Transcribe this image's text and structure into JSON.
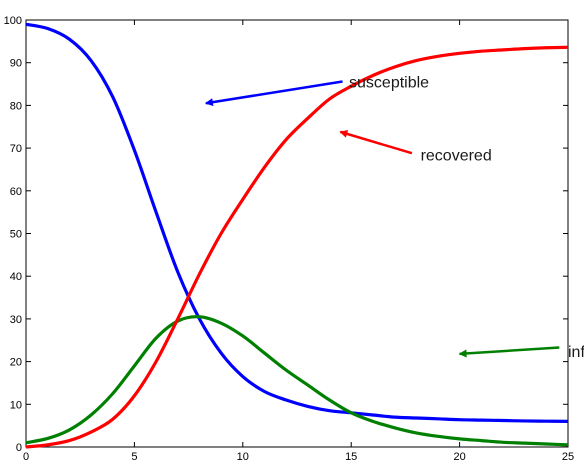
{
  "chart_data": {
    "type": "line",
    "xlim": [
      0,
      25
    ],
    "ylim": [
      0,
      100
    ],
    "xticks": [
      0,
      5,
      10,
      15,
      20,
      25
    ],
    "yticks": [
      0,
      10,
      20,
      30,
      40,
      50,
      60,
      70,
      80,
      90,
      100
    ],
    "grid": false,
    "series": [
      {
        "name": "susceptible",
        "color": "#0000ff",
        "x": [
          0,
          1,
          2,
          3,
          4,
          5,
          6,
          7,
          8,
          9,
          10,
          11,
          12,
          13,
          14,
          15,
          16,
          17,
          18,
          19,
          20,
          21,
          22,
          23,
          24,
          25
        ],
        "values": [
          99,
          98,
          95.5,
          90.5,
          82,
          69.5,
          55,
          41,
          30,
          22,
          16.5,
          13,
          11,
          9.5,
          8.5,
          8,
          7.5,
          7,
          6.8,
          6.6,
          6.4,
          6.3,
          6.2,
          6.1,
          6.05,
          6
        ]
      },
      {
        "name": "infective",
        "color": "#008000",
        "x": [
          0,
          1,
          2,
          3,
          4,
          5,
          6,
          7,
          8,
          9,
          10,
          11,
          12,
          13,
          14,
          15,
          16,
          17,
          18,
          19,
          20,
          21,
          22,
          23,
          24,
          25
        ],
        "values": [
          1,
          2,
          4,
          7.5,
          12.5,
          19,
          25.5,
          29.5,
          30.5,
          29,
          26,
          22,
          18,
          14.5,
          11,
          8,
          6,
          4.5,
          3.3,
          2.5,
          1.9,
          1.5,
          1.1,
          0.9,
          0.7,
          0.5
        ]
      },
      {
        "name": "recovered",
        "color": "#ff0000",
        "x": [
          0,
          1,
          2,
          3,
          4,
          5,
          6,
          7,
          8,
          9,
          10,
          11,
          12,
          13,
          14,
          15,
          16,
          17,
          18,
          19,
          20,
          21,
          22,
          23,
          24,
          25
        ],
        "values": [
          0,
          0.5,
          1.5,
          3.5,
          6.5,
          12,
          20,
          30,
          40.5,
          50,
          58,
          65.5,
          72,
          77,
          81.5,
          84.5,
          87,
          89,
          90.5,
          91.5,
          92.2,
          92.7,
          93,
          93.3,
          93.5,
          93.6
        ]
      }
    ],
    "annotations": [
      {
        "text": "susceptible",
        "series": "susceptible",
        "color": "#0000ff",
        "text_x": 14.9,
        "text_y": 85.6,
        "arrow_from": [
          14.6,
          85.6
        ],
        "arrow_to": [
          8.3,
          80.5
        ]
      },
      {
        "text": "recovered",
        "series": "recovered",
        "color": "#ff0000",
        "text_x": 18.2,
        "text_y": 68.5,
        "arrow_from": [
          17.8,
          68.8
        ],
        "arrow_to": [
          14.5,
          73.8
        ]
      },
      {
        "text": "infective",
        "series": "infective",
        "color": "#008000",
        "text_x": 25.0,
        "text_y": 22.5,
        "arrow_from": [
          24.6,
          23.3
        ],
        "arrow_to": [
          20.0,
          21.8
        ]
      }
    ]
  }
}
